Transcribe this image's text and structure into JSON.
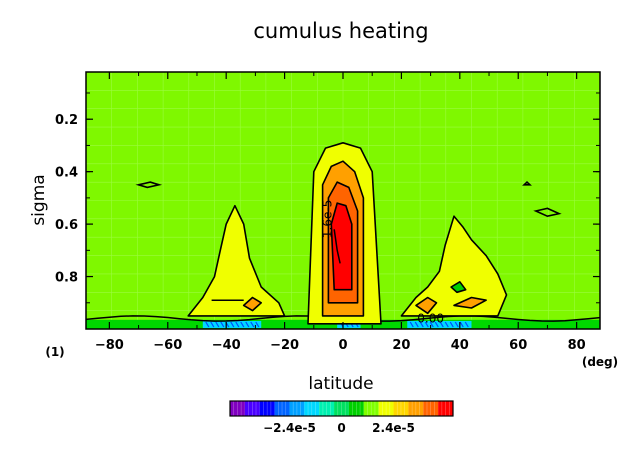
{
  "chart_data": {
    "type": "heatmap",
    "title": "cumulus heating",
    "xlabel": "latitude",
    "ylabel": "sigma",
    "x_unit": "(deg)",
    "y_unit": "(1)",
    "xlim": [
      -88,
      88
    ],
    "ylim": [
      1.0,
      0.02
    ],
    "x_ticks": [
      -80,
      -60,
      -40,
      -20,
      0,
      20,
      40,
      60,
      80
    ],
    "y_ticks": [
      0.2,
      0.4,
      0.6,
      0.8
    ],
    "x_tick_labels": [
      "−80",
      "−60",
      "−40",
      "−20",
      "0",
      "20",
      "40",
      "60",
      "80"
    ],
    "y_tick_labels": [
      "0.2",
      "0.4",
      "0.6",
      "0.8"
    ],
    "contour_labels": [
      {
        "text": "1.6e-5",
        "x": -4,
        "y": 0.58
      },
      {
        "text": "0.00",
        "x": 30,
        "y": 0.975
      }
    ],
    "regions": [
      {
        "level": 4e-06,
        "points": [
          [
            -12,
            0.98
          ],
          [
            -10,
            0.4
          ],
          [
            -6,
            0.31
          ],
          [
            0,
            0.29
          ],
          [
            6,
            0.31
          ],
          [
            10,
            0.4
          ],
          [
            13,
            0.98
          ]
        ]
      },
      {
        "level": 1.2e-05,
        "points": [
          [
            -7,
            0.95
          ],
          [
            -7,
            0.45
          ],
          [
            -4,
            0.38
          ],
          [
            0,
            0.36
          ],
          [
            4,
            0.4
          ],
          [
            7,
            0.5
          ],
          [
            7,
            0.95
          ]
        ]
      },
      {
        "level": 2e-05,
        "points": [
          [
            -5,
            0.9
          ],
          [
            -5,
            0.5
          ],
          [
            -2,
            0.44
          ],
          [
            2,
            0.46
          ],
          [
            5,
            0.55
          ],
          [
            5,
            0.9
          ]
        ]
      },
      {
        "level": 2.4e-05,
        "points": [
          [
            -3,
            0.85
          ],
          [
            -4,
            0.6
          ],
          [
            -2,
            0.52
          ],
          [
            1,
            0.53
          ],
          [
            3,
            0.6
          ],
          [
            3,
            0.85
          ]
        ]
      },
      {
        "level": 4e-06,
        "points": [
          [
            -53,
            0.95
          ],
          [
            -48,
            0.88
          ],
          [
            -44,
            0.8
          ],
          [
            -42,
            0.7
          ],
          [
            -40,
            0.6
          ],
          [
            -37,
            0.53
          ],
          [
            -34,
            0.6
          ],
          [
            -32,
            0.73
          ],
          [
            -28,
            0.84
          ],
          [
            -22,
            0.9
          ],
          [
            -20,
            0.95
          ]
        ]
      },
      {
        "level": 1.2e-05,
        "points": [
          [
            -34,
            0.91
          ],
          [
            -31,
            0.88
          ],
          [
            -28,
            0.9
          ],
          [
            -31,
            0.93
          ]
        ]
      },
      {
        "level": 4e-06,
        "points": [
          [
            20,
            0.95
          ],
          [
            25,
            0.88
          ],
          [
            29,
            0.84
          ],
          [
            33,
            0.78
          ],
          [
            35,
            0.68
          ],
          [
            38,
            0.57
          ],
          [
            41,
            0.61
          ],
          [
            44,
            0.66
          ],
          [
            49,
            0.72
          ],
          [
            53,
            0.79
          ],
          [
            56,
            0.87
          ],
          [
            53,
            0.95
          ]
        ]
      },
      {
        "level": 1.2e-05,
        "points": [
          [
            25,
            0.91
          ],
          [
            29,
            0.88
          ],
          [
            32,
            0.9
          ],
          [
            29,
            0.94
          ]
        ]
      },
      {
        "level": 1.2e-05,
        "points": [
          [
            38,
            0.91
          ],
          [
            44,
            0.88
          ],
          [
            49,
            0.89
          ],
          [
            44,
            0.92
          ]
        ]
      },
      {
        "level": 0.0,
        "points": [
          [
            37,
            0.84
          ],
          [
            40,
            0.82
          ],
          [
            42,
            0.85
          ],
          [
            39,
            0.86
          ]
        ]
      }
    ],
    "small_contours": [
      {
        "points": [
          [
            -70,
            0.45
          ],
          [
            -66,
            0.44
          ],
          [
            -63,
            0.45
          ],
          [
            -67,
            0.46
          ]
        ]
      },
      {
        "points": [
          [
            62,
            0.45
          ],
          [
            63,
            0.44
          ],
          [
            64,
            0.45
          ]
        ]
      },
      {
        "points": [
          [
            66,
            0.55
          ],
          [
            70,
            0.54
          ],
          [
            74,
            0.56
          ],
          [
            70,
            0.57
          ]
        ]
      }
    ],
    "colorbar": {
      "colors": [
        "#8000c0",
        "#4b00ff",
        "#0000ff",
        "#0064ff",
        "#00a0ff",
        "#00d8ff",
        "#00f0b0",
        "#00e060",
        "#00d000",
        "#80ff00",
        "#f0ff00",
        "#ffd700",
        "#ffa000",
        "#ff6400",
        "#ff0000"
      ],
      "tick_labels": [
        "−2.4e-5",
        "0",
        "2.4e-5"
      ]
    }
  }
}
